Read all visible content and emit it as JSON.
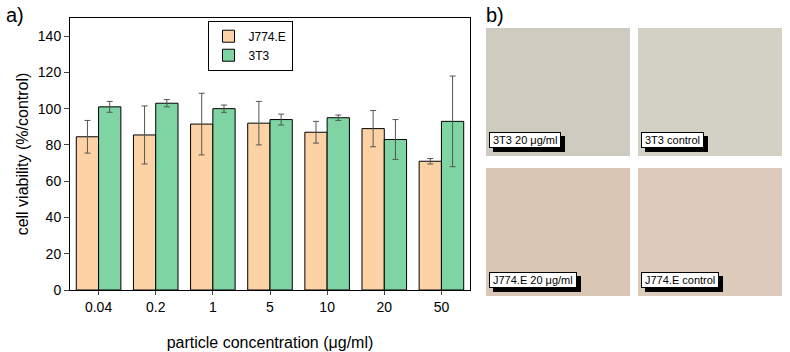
{
  "panel_labels": [
    "a)",
    "b)"
  ],
  "chart_data": {
    "type": "bar",
    "categories": [
      "0.04",
      "0.2",
      "1",
      "5",
      "10",
      "20",
      "50"
    ],
    "series": [
      {
        "name": "J774.E",
        "color": "#fdd3a6",
        "values": [
          84.5,
          85.5,
          91.5,
          92,
          87,
          89,
          71
        ],
        "errors": [
          9,
          16,
          17,
          12,
          6,
          10,
          1.5
        ]
      },
      {
        "name": "3T3",
        "color": "#7fd4a3",
        "values": [
          101,
          103,
          100,
          94,
          95,
          83,
          93
        ],
        "errors": [
          3,
          2,
          2,
          3,
          1.5,
          11,
          25
        ]
      }
    ],
    "x_label": "particle concentration (μg/ml)",
    "y_label": "cell viability (%/control)",
    "ylim": [
      0,
      150
    ],
    "yticks": [
      0,
      20,
      40,
      60,
      80,
      100,
      120,
      140
    ],
    "legend": "top",
    "grid": false
  },
  "images": [
    {
      "label": "3T3 20 μg/ml",
      "color": "#cfcbc0"
    },
    {
      "label": "3T3 control",
      "color": "#d3d0c6"
    },
    {
      "label": "J774.E 20 μg/ml",
      "color": "#d9c6b5"
    },
    {
      "label": "J774.E control",
      "color": "#dccbbb"
    }
  ]
}
